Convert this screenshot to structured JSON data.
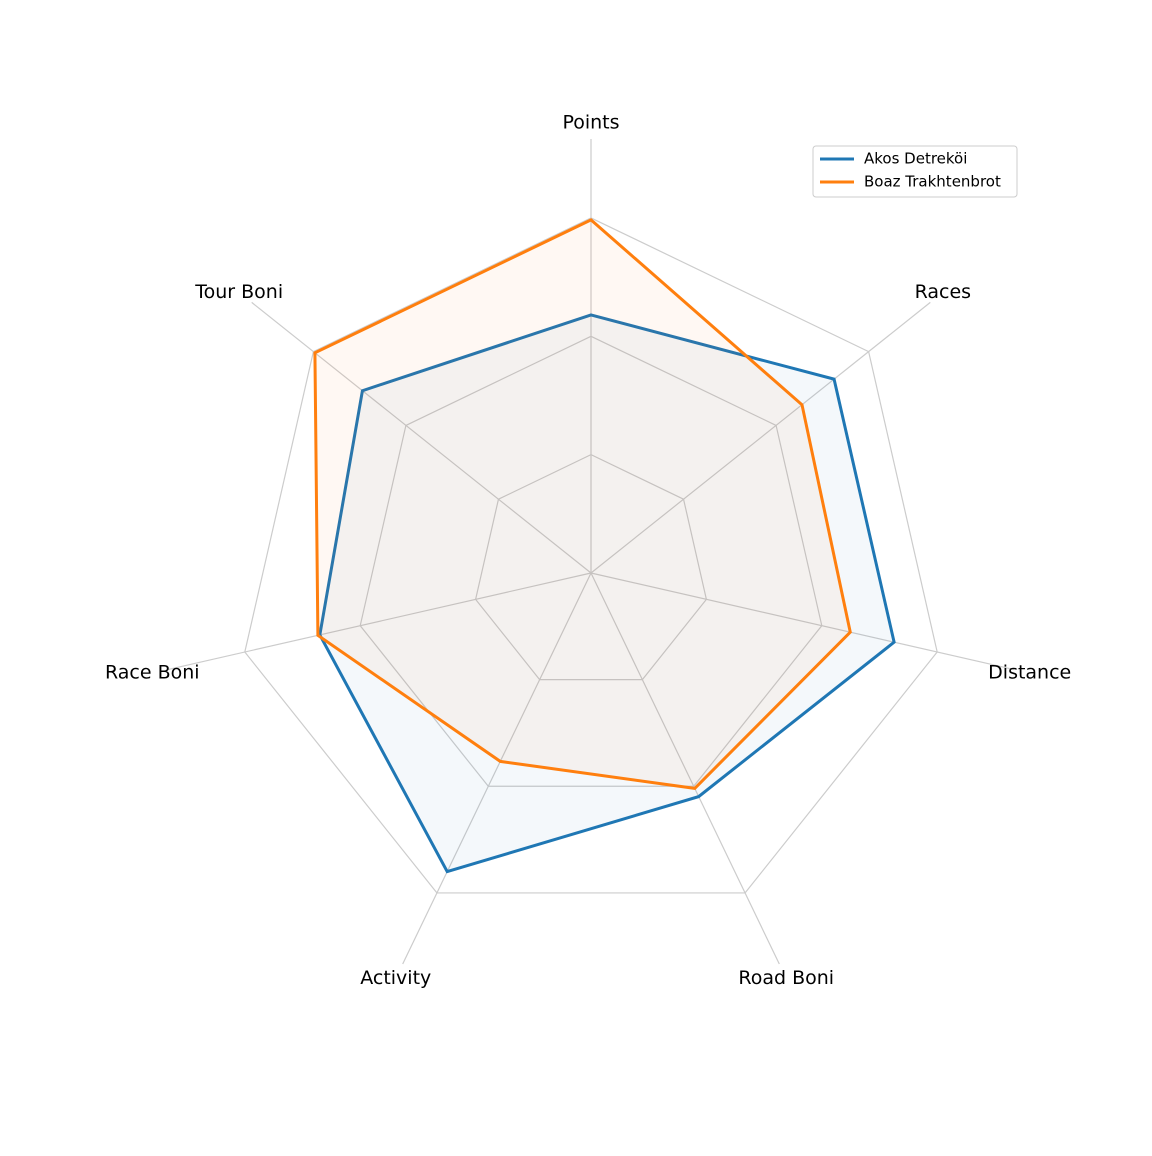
{
  "chart_data": {
    "type": "radar",
    "categories": [
      "Points",
      "Races",
      "Distance",
      "Road Boni",
      "Activity",
      "Race Boni",
      "Tour Boni"
    ],
    "series": [
      {
        "name": "Akos Detreköi",
        "color": "#1f77b4",
        "values": [
          0.654,
          0.788,
          0.788,
          0.629,
          0.84,
          0.705,
          0.741
        ]
      },
      {
        "name": "Boaz Trakhtenbrot",
        "color": "#ff7f0e",
        "values": [
          0.895,
          0.684,
          0.674,
          0.606,
          0.53,
          0.71,
          0.895
        ]
      }
    ],
    "ylim": [
      0,
      1.1
    ],
    "yticks": [
      0.3,
      0.6,
      0.9
    ],
    "grid": true,
    "legend": "upper right"
  }
}
